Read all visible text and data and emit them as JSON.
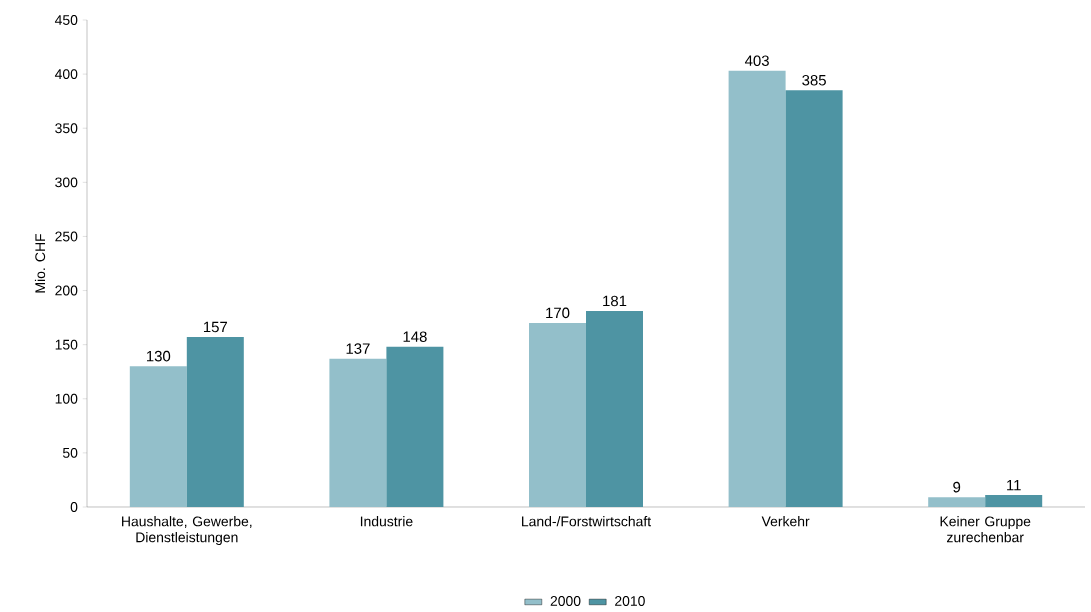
{
  "chart_data": {
    "type": "bar",
    "ylabel": "Mio. CHF",
    "categories": [
      "Haushalte, Gewerbe, Dienstleistungen",
      "Industrie",
      "Land-/Forstwirtschaft",
      "Verkehr",
      "Keiner Gruppe zurechenbar"
    ],
    "series": [
      {
        "name": "2000",
        "color": "#93bfca",
        "values": [
          130,
          137,
          170,
          403,
          9
        ]
      },
      {
        "name": "2010",
        "color": "#4e94a3",
        "values": [
          157,
          148,
          181,
          385,
          11
        ]
      }
    ],
    "ylim": [
      0,
      450
    ],
    "yticks": [
      0,
      50,
      100,
      150,
      200,
      250,
      300,
      350,
      400,
      450
    ],
    "data_labels": true,
    "legend": "bottom"
  }
}
